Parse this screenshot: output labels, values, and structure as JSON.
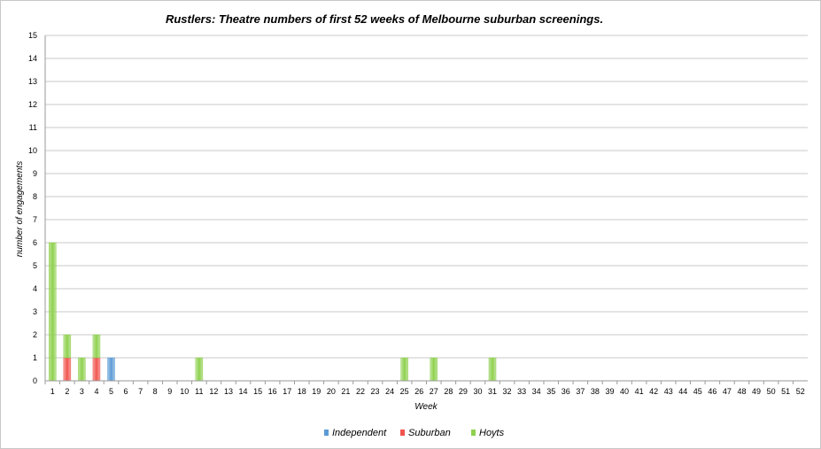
{
  "chart_data": {
    "type": "bar",
    "stacked": true,
    "title": "Rustlers: Theatre numbers of first 52 weeks of Melbourne suburban screenings.",
    "xlabel": "Week",
    "ylabel": "number of engagements",
    "ylim": [
      0,
      15
    ],
    "yticks": [
      0,
      1,
      2,
      3,
      4,
      5,
      6,
      7,
      8,
      9,
      10,
      11,
      12,
      13,
      14,
      15
    ],
    "grid": true,
    "legend_position": "bottom",
    "categories": [
      "1",
      "2",
      "3",
      "4",
      "5",
      "6",
      "7",
      "8",
      "9",
      "10",
      "11",
      "12",
      "13",
      "14",
      "15",
      "16",
      "17",
      "18",
      "19",
      "20",
      "21",
      "22",
      "23",
      "24",
      "25",
      "26",
      "27",
      "28",
      "29",
      "30",
      "31",
      "32",
      "33",
      "34",
      "35",
      "36",
      "37",
      "38",
      "39",
      "40",
      "41",
      "42",
      "43",
      "44",
      "45",
      "46",
      "47",
      "48",
      "49",
      "50",
      "51",
      "52"
    ],
    "series": [
      {
        "name": "Independent",
        "color": "#5b9bd5",
        "values": [
          0,
          0,
          0,
          0,
          1,
          0,
          0,
          0,
          0,
          0,
          0,
          0,
          0,
          0,
          0,
          0,
          0,
          0,
          0,
          0,
          0,
          0,
          0,
          0,
          0,
          0,
          0,
          0,
          0,
          0,
          0,
          0,
          0,
          0,
          0,
          0,
          0,
          0,
          0,
          0,
          0,
          0,
          0,
          0,
          0,
          0,
          0,
          0,
          0,
          0,
          0,
          0
        ]
      },
      {
        "name": "Suburban",
        "color": "#f0554f",
        "values": [
          0,
          1,
          0,
          1,
          0,
          0,
          0,
          0,
          0,
          0,
          0,
          0,
          0,
          0,
          0,
          0,
          0,
          0,
          0,
          0,
          0,
          0,
          0,
          0,
          0,
          0,
          0,
          0,
          0,
          0,
          0,
          0,
          0,
          0,
          0,
          0,
          0,
          0,
          0,
          0,
          0,
          0,
          0,
          0,
          0,
          0,
          0,
          0,
          0,
          0,
          0,
          0
        ]
      },
      {
        "name": "Hoyts",
        "color": "#8fd14f",
        "values": [
          6,
          1,
          1,
          1,
          0,
          0,
          0,
          0,
          0,
          0,
          1,
          0,
          0,
          0,
          0,
          0,
          0,
          0,
          0,
          0,
          0,
          0,
          0,
          0,
          1,
          0,
          1,
          0,
          0,
          0,
          1,
          0,
          0,
          0,
          0,
          0,
          0,
          0,
          0,
          0,
          0,
          0,
          0,
          0,
          0,
          0,
          0,
          0,
          0,
          0,
          0,
          0
        ]
      }
    ]
  }
}
